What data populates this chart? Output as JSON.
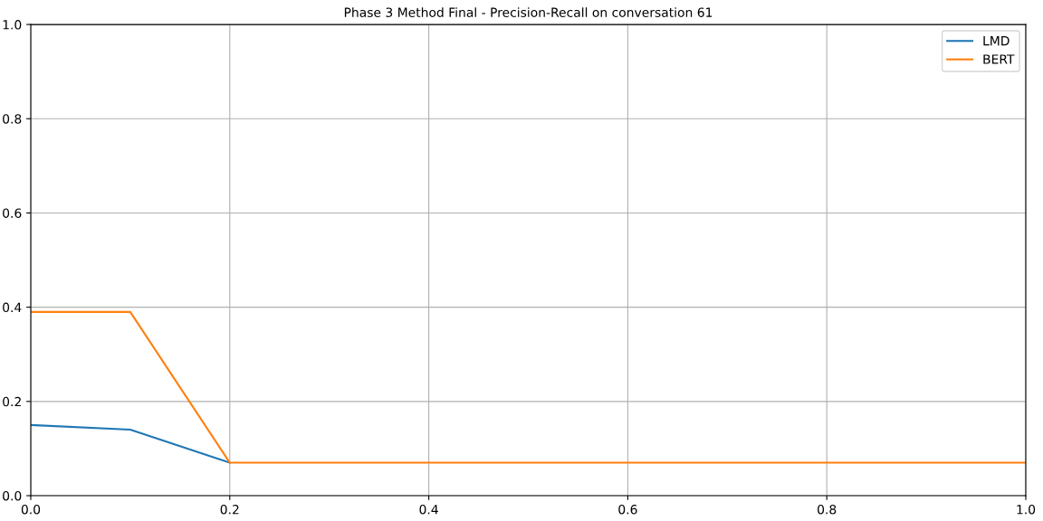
{
  "chart_data": {
    "type": "line",
    "title": "Phase 3 Method Final - Precision-Recall on conversation 61",
    "x": [
      0.0,
      0.1,
      0.2,
      0.3,
      0.4,
      0.5,
      0.6,
      0.7,
      0.8,
      0.9,
      1.0
    ],
    "series": [
      {
        "name": "LMD",
        "color": "#1f77b4",
        "values": [
          0.15,
          0.14,
          0.07,
          null,
          null,
          null,
          null,
          null,
          null,
          null,
          null
        ]
      },
      {
        "name": "BERT",
        "color": "#ff7f0e",
        "values": [
          0.39,
          0.39,
          0.07,
          0.07,
          0.07,
          0.07,
          0.07,
          0.07,
          0.07,
          0.07,
          0.07
        ]
      }
    ],
    "xlim": [
      0,
      1
    ],
    "ylim": [
      0,
      1
    ],
    "xticks": [
      {
        "value": 0,
        "label": "0.0"
      },
      0.2,
      0.4,
      0.6,
      0.8,
      {
        "value": 1,
        "label": "1.0"
      }
    ],
    "yticks": [
      {
        "value": 0,
        "label": "0.0"
      },
      0.2,
      0.4,
      0.6,
      0.8,
      {
        "value": 1,
        "label": "1.0"
      }
    ],
    "grid": true,
    "legend": "top right",
    "marker": "none",
    "line_style": "solid"
  }
}
